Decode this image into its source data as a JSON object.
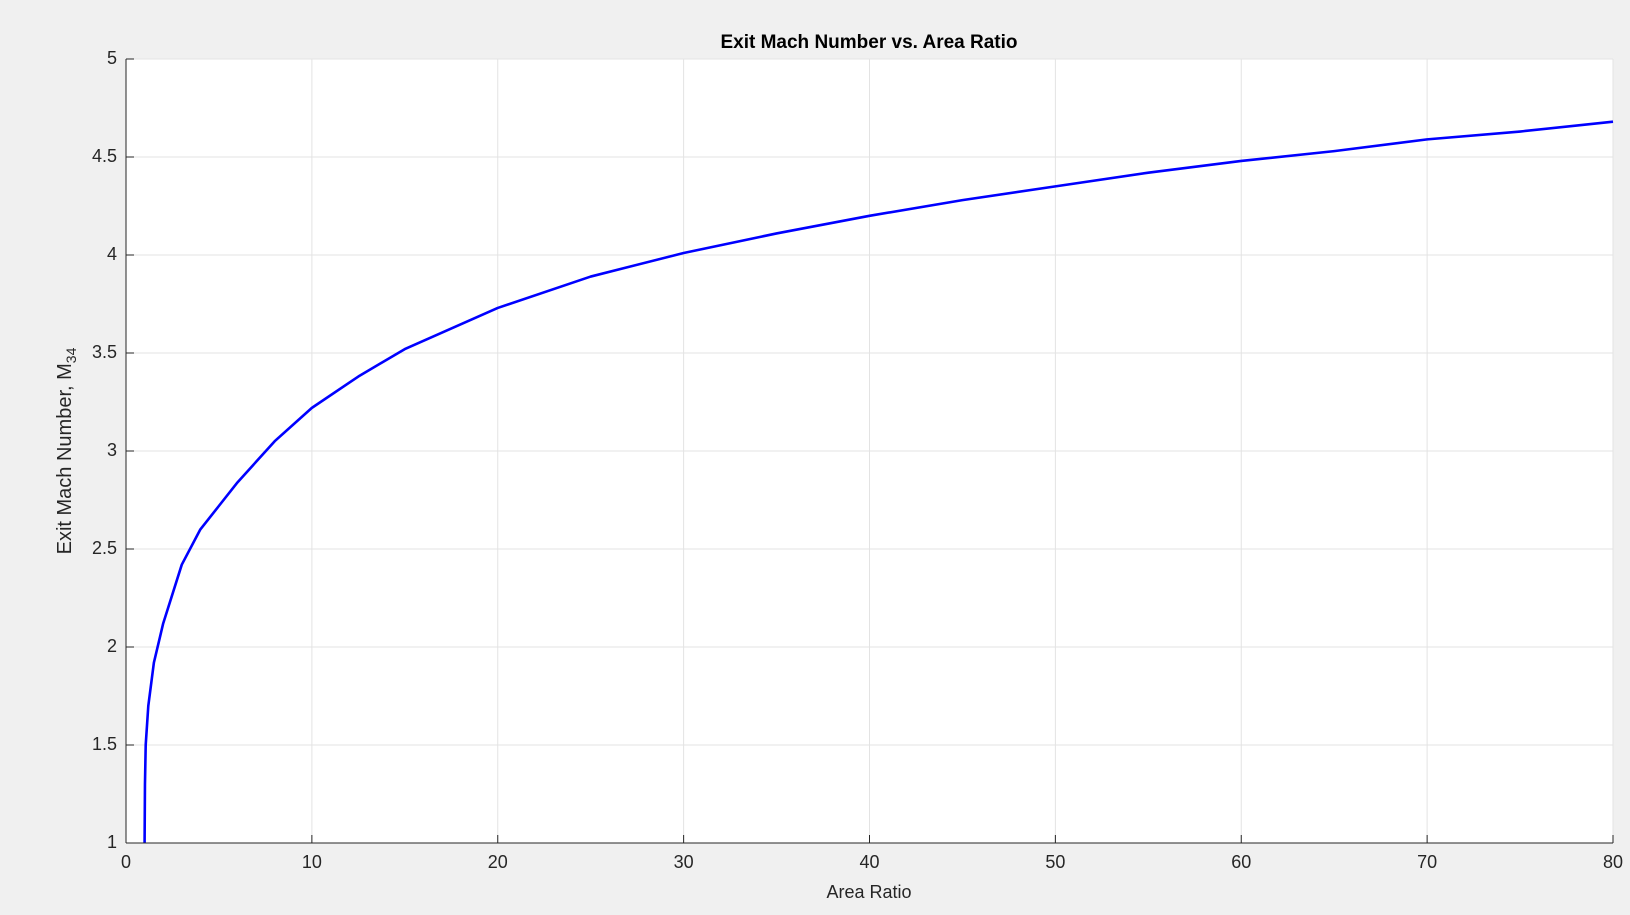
{
  "chart_data": {
    "type": "line",
    "title": "Exit Mach Number vs. Area Ratio",
    "xlabel": "Area Ratio",
    "ylabel": {
      "text": "Exit Mach Number, M",
      "subscript": "34"
    },
    "x": [
      1,
      1.02,
      1.06,
      1.2,
      1.5,
      2,
      3,
      4,
      5,
      6,
      8,
      10,
      12.5,
      15,
      20,
      25,
      30,
      35,
      40,
      45,
      50,
      55,
      60,
      65,
      70,
      75,
      80
    ],
    "series": [
      {
        "color": "#0000ff",
        "values": [
          1,
          1.3,
          1.5,
          1.7,
          1.92,
          2.12,
          2.42,
          2.6,
          2.72,
          2.84,
          3.05,
          3.22,
          3.38,
          3.52,
          3.73,
          3.89,
          4.01,
          4.11,
          4.2,
          4.28,
          4.35,
          4.42,
          4.48,
          4.53,
          4.59,
          4.63,
          4.68
        ]
      }
    ],
    "xlim": [
      0,
      80
    ],
    "ylim": [
      1,
      5
    ],
    "xticks": [
      0,
      10,
      20,
      30,
      40,
      50,
      60,
      70,
      80
    ],
    "yticks": [
      1,
      1.5,
      2,
      2.5,
      3,
      3.5,
      4,
      4.5,
      5
    ],
    "grid": true
  }
}
